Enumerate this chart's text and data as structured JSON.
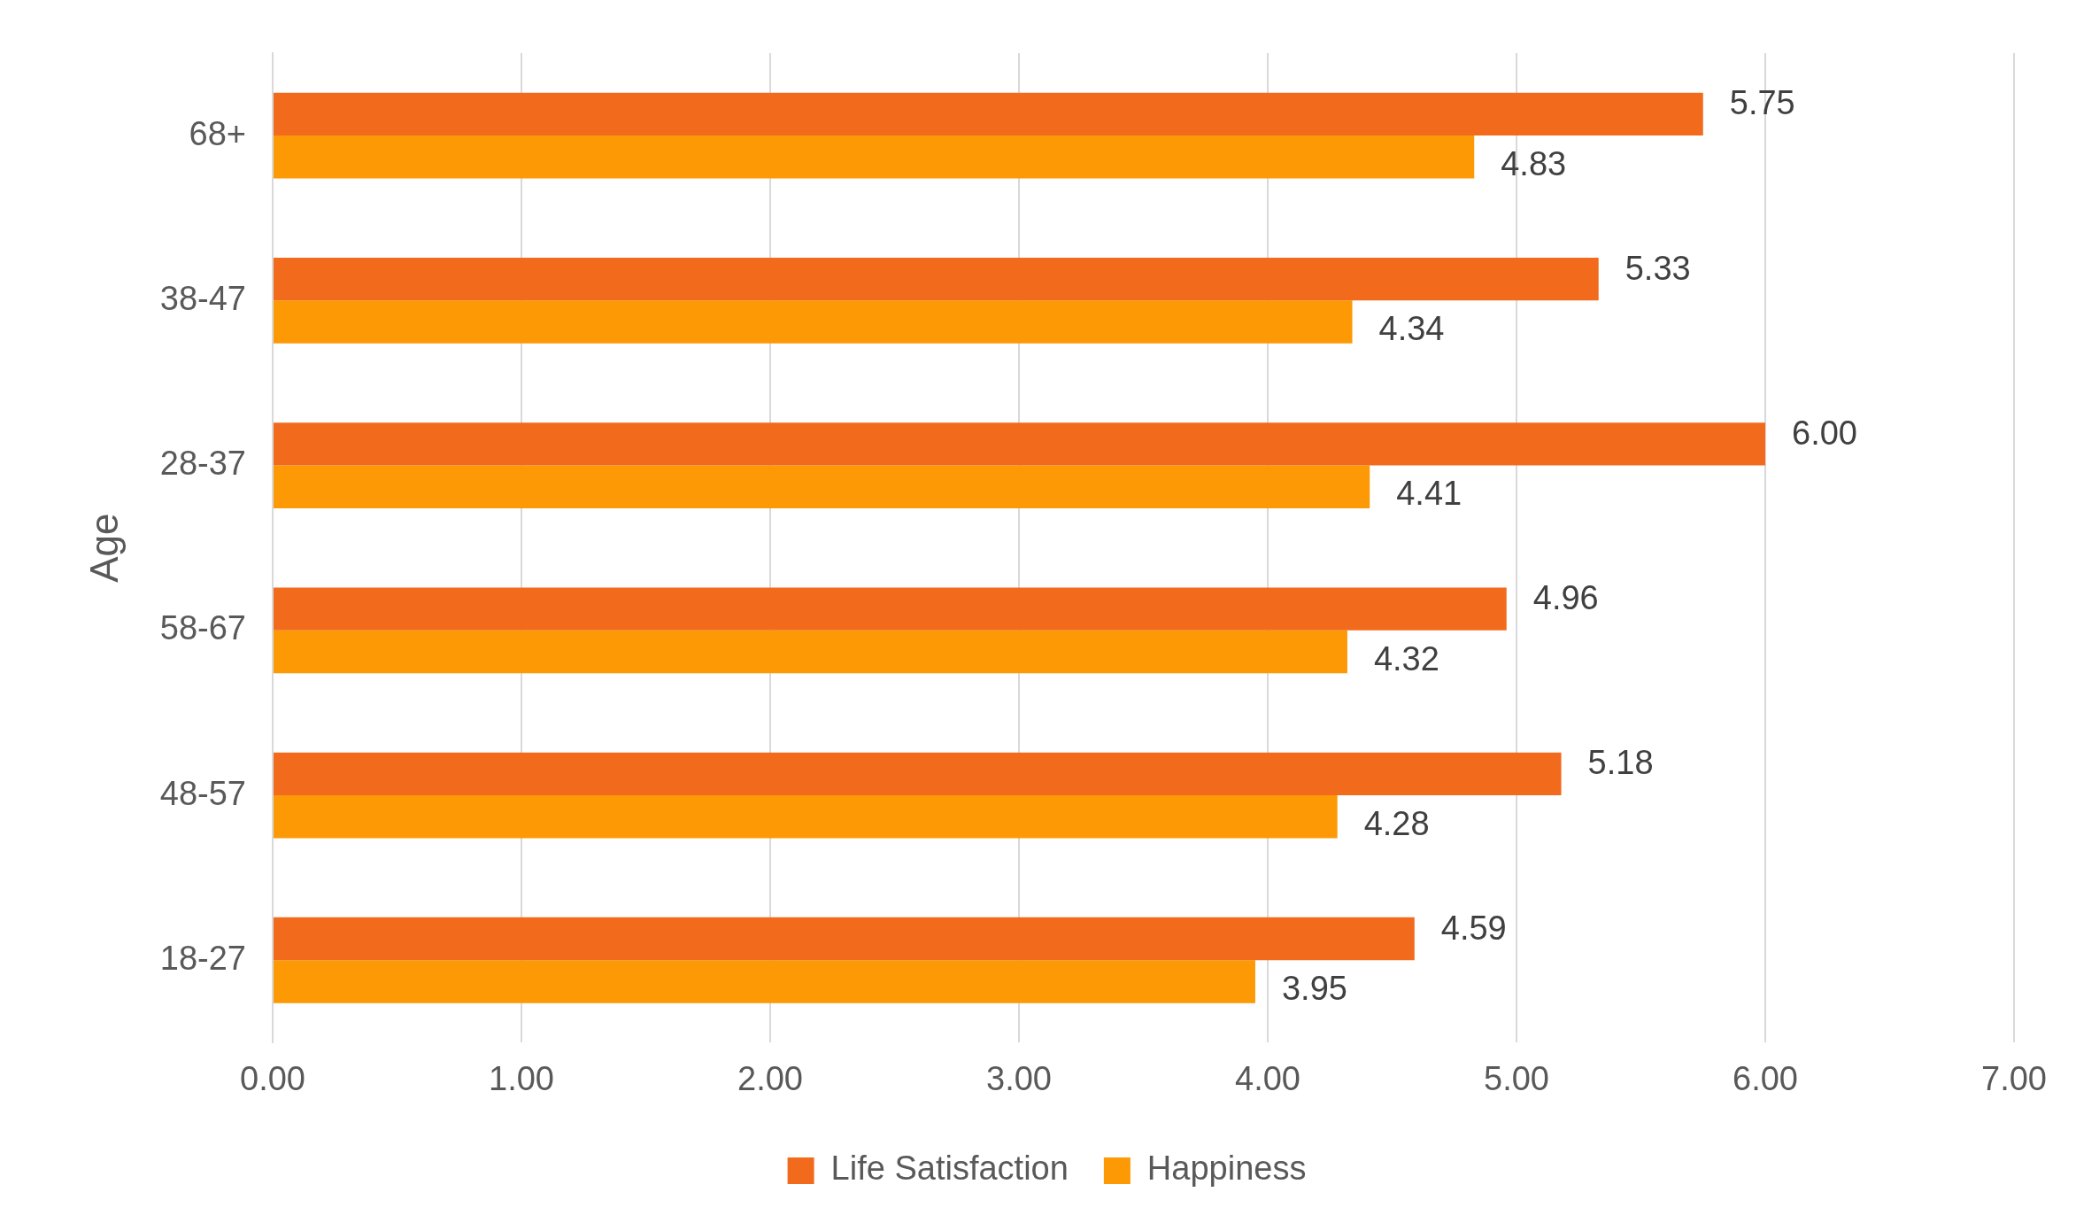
{
  "chart_data": {
    "type": "bar",
    "orientation": "horizontal",
    "ylabel": "Age",
    "categories": [
      "68+",
      "38-47",
      "28-37",
      "58-67",
      "48-57",
      "18-27"
    ],
    "series": [
      {
        "name": "Life Satisfaction",
        "color": "#f26b1d",
        "values": [
          5.75,
          5.33,
          6.0,
          4.96,
          5.18,
          4.59
        ],
        "value_labels": [
          "5.75",
          "5.33",
          "6.00",
          "4.96",
          "5.18",
          "4.59"
        ]
      },
      {
        "name": "Happiness",
        "color": "#fc9904",
        "values": [
          4.83,
          4.34,
          4.41,
          4.32,
          4.28,
          3.95
        ],
        "value_labels": [
          "4.83",
          "4.34",
          "4.41",
          "4.32",
          "4.28",
          "3.95"
        ]
      }
    ],
    "xlim": [
      0,
      7
    ],
    "xticks": [
      {
        "value": 0,
        "label": "0.00"
      },
      {
        "value": 1,
        "label": "1.00"
      },
      {
        "value": 2,
        "label": "2.00"
      },
      {
        "value": 3,
        "label": "3.00"
      },
      {
        "value": 4,
        "label": "4.00"
      },
      {
        "value": 5,
        "label": "5.00"
      },
      {
        "value": 6,
        "label": "6.00"
      },
      {
        "value": 7,
        "label": "7.00"
      }
    ],
    "grid": "x",
    "legend": "bottom"
  }
}
